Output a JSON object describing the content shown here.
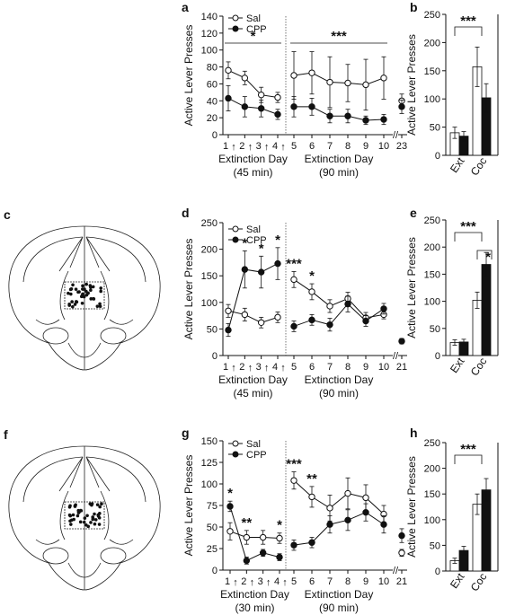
{
  "common": {
    "ylabel": "Active Lever Presses",
    "legend": [
      "Sal",
      "CPP"
    ],
    "bar_labels": [
      "Ext",
      "Coc"
    ],
    "axis_break": "//",
    "arrow_glyph": "↑"
  },
  "chart_data": [
    {
      "panel": "a",
      "type": "line",
      "ylim": [
        0,
        140
      ],
      "yticks": [
        0,
        20,
        40,
        60,
        80,
        100,
        120,
        140
      ],
      "legend": [
        "Sal",
        "CPP"
      ],
      "ylabel": "Active Lever Presses",
      "segments": [
        {
          "xticks": [
            "1",
            "2",
            "3",
            "4"
          ],
          "xlabel": "Extinction Day",
          "xlabel_sub": "(45 min)",
          "arrows": true,
          "series": [
            {
              "name": "Sal",
              "values": [
                76,
                67,
                47,
                44
              ],
              "err": [
                10,
                8,
                9,
                6
              ]
            },
            {
              "name": "CPP",
              "values": [
                43,
                33,
                31,
                24
              ],
              "err": [
                15,
                12,
                10,
                6
              ]
            }
          ],
          "sig": [
            {
              "text": "*",
              "bracket": true
            }
          ]
        },
        {
          "xticks": [
            "5",
            "6",
            "7",
            "8",
            "9",
            "10"
          ],
          "xlabel": "Extinction Day",
          "xlabel_sub": "(90 min)",
          "series": [
            {
              "name": "Sal",
              "values": [
                70,
                73,
                62,
                61,
                59,
                67
              ],
              "err": [
                28,
                25,
                30,
                22,
                30,
                25
              ]
            },
            {
              "name": "CPP",
              "values": [
                33,
                33,
                22,
                22,
                17,
                18
              ],
              "err": [
                12,
                10,
                8,
                8,
                5,
                6
              ]
            }
          ],
          "sig": [
            {
              "text": "***",
              "bracket": true
            }
          ]
        },
        {
          "xticks": [
            "23"
          ],
          "series": [
            {
              "name": "Sal",
              "values": [
                40
              ],
              "err": [
                8
              ]
            },
            {
              "name": "CPP",
              "values": [
                33
              ],
              "err": [
                8
              ]
            }
          ]
        }
      ]
    },
    {
      "panel": "b",
      "type": "bar",
      "ylim": [
        0,
        250
      ],
      "yticks": [
        0,
        50,
        100,
        150,
        200,
        250
      ],
      "ylabel": "Active Lever Presses",
      "categories": [
        "Ext",
        "Coc"
      ],
      "series": [
        {
          "name": "Sal",
          "values": [
            40,
            157
          ],
          "err": [
            10,
            35
          ]
        },
        {
          "name": "CPP",
          "values": [
            34,
            102
          ],
          "err": [
            8,
            25
          ]
        }
      ],
      "sig": [
        {
          "text": "***"
        }
      ]
    },
    {
      "panel": "d",
      "type": "line",
      "ylim": [
        0,
        250
      ],
      "yticks": [
        0,
        50,
        100,
        150,
        200,
        250
      ],
      "legend": [
        "Sal",
        "CPP"
      ],
      "ylabel": "Active Lever Presses",
      "segments": [
        {
          "xticks": [
            "1",
            "2",
            "3",
            "4"
          ],
          "xlabel": "Extinction Day",
          "xlabel_sub": "(45 min)",
          "arrows": true,
          "series": [
            {
              "name": "Sal",
              "values": [
                84,
                77,
                62,
                72
              ],
              "err": [
                12,
                12,
                10,
                10
              ]
            },
            {
              "name": "CPP",
              "values": [
                48,
                162,
                157,
                173
              ],
              "err": [
                12,
                35,
                30,
                30
              ]
            }
          ],
          "sig": [
            "",
            "*",
            "*",
            "*"
          ]
        },
        {
          "xticks": [
            "5",
            "6",
            "7",
            "8",
            "9",
            "10"
          ],
          "xlabel": "Extinction Day",
          "xlabel_sub": "(90 min)",
          "series": [
            {
              "name": "Sal",
              "values": [
                143,
                120,
                93,
                107,
                71,
                77
              ],
              "err": [
                15,
                15,
                12,
                12,
                10,
                8
              ]
            },
            {
              "name": "CPP",
              "values": [
                55,
                67,
                58,
                97,
                65,
                88
              ],
              "err": [
                10,
                10,
                12,
                15,
                10,
                10
              ]
            }
          ],
          "sig": [
            "***",
            "*",
            "",
            "",
            "",
            ""
          ]
        },
        {
          "xticks": [
            "21"
          ],
          "series": [
            {
              "name": "CPP",
              "values": [
                27
              ],
              "err": [
                5
              ]
            }
          ]
        }
      ]
    },
    {
      "panel": "e",
      "type": "bar",
      "ylim": [
        0,
        250
      ],
      "yticks": [
        0,
        50,
        100,
        150,
        200,
        250
      ],
      "ylabel": "Active Lever Presses",
      "categories": [
        "Ext",
        "Coc"
      ],
      "series": [
        {
          "name": "Sal",
          "values": [
            24,
            102
          ],
          "err": [
            5,
            15
          ]
        },
        {
          "name": "CPP",
          "values": [
            25,
            168
          ],
          "err": [
            5,
            22
          ]
        }
      ],
      "sig": [
        {
          "text": "***"
        },
        {
          "text": "*"
        }
      ]
    },
    {
      "panel": "g",
      "type": "line",
      "ylim": [
        0,
        150
      ],
      "yticks": [
        0,
        25,
        50,
        75,
        100,
        125,
        150
      ],
      "legend": [
        "Sal",
        "CPP"
      ],
      "ylabel": "Active Lever Presses",
      "segments": [
        {
          "xticks": [
            "1",
            "2",
            "3",
            "4"
          ],
          "xlabel": "Extinction Day",
          "xlabel_sub": "(30 min)",
          "arrows": true,
          "series": [
            {
              "name": "Sal",
              "values": [
                45,
                38,
                38,
                37
              ],
              "err": [
                10,
                8,
                8,
                6
              ]
            },
            {
              "name": "CPP",
              "values": [
                74,
                11,
                20,
                15
              ],
              "err": [
                6,
                4,
                4,
                4
              ]
            }
          ],
          "sig": [
            "*",
            "**",
            "",
            "*"
          ]
        },
        {
          "xticks": [
            "5",
            "6",
            "7",
            "8",
            "9",
            "10"
          ],
          "xlabel": "Extinction Day",
          "xlabel_sub": "(90 min)",
          "series": [
            {
              "name": "Sal",
              "values": [
                104,
                85,
                72,
                89,
                84,
                65
              ],
              "err": [
                10,
                12,
                15,
                18,
                15,
                10
              ]
            },
            {
              "name": "CPP",
              "values": [
                29,
                32,
                53,
                58,
                67,
                53
              ],
              "err": [
                6,
                6,
                10,
                12,
                10,
                10
              ]
            }
          ],
          "sig": [
            "***",
            "**",
            "",
            "",
            "",
            ""
          ]
        },
        {
          "xticks": [
            "21"
          ],
          "series": [
            {
              "name": "Sal",
              "values": [
                20
              ],
              "err": [
                4
              ]
            },
            {
              "name": "CPP",
              "values": [
                40
              ],
              "err": [
                8
              ]
            }
          ]
        }
      ]
    },
    {
      "panel": "h",
      "type": "bar",
      "ylim": [
        0,
        250
      ],
      "yticks": [
        0,
        50,
        100,
        150,
        200,
        250
      ],
      "ylabel": "Active Lever Presses",
      "categories": [
        "Ext",
        "Coc"
      ],
      "series": [
        {
          "name": "Sal",
          "values": [
            20,
            130
          ],
          "err": [
            5,
            20
          ]
        },
        {
          "name": "CPP",
          "values": [
            40,
            158
          ],
          "err": [
            8,
            22
          ]
        }
      ],
      "sig": [
        {
          "text": "***"
        }
      ]
    }
  ],
  "brain_panels": [
    {
      "panel": "c",
      "icon": "coronal-brain-section-icon"
    },
    {
      "panel": "f",
      "icon": "coronal-brain-section-icon"
    }
  ]
}
